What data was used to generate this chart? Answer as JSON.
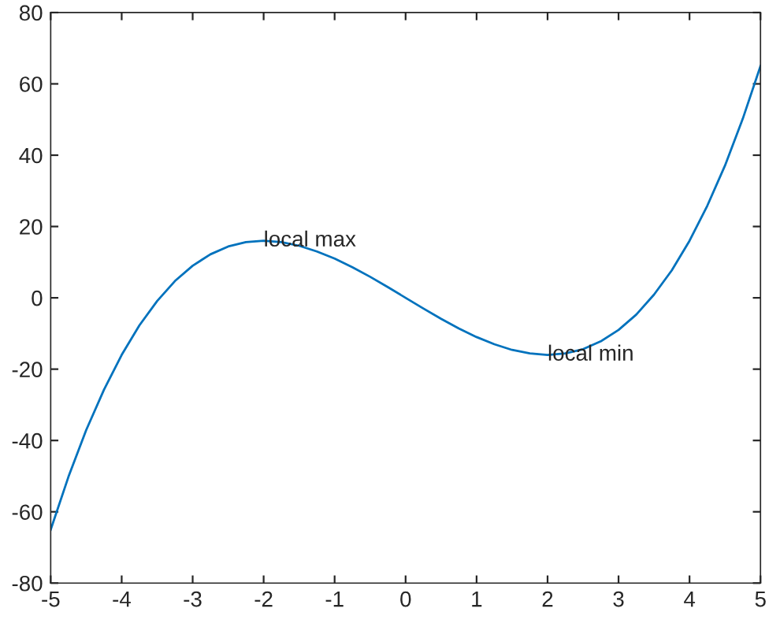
{
  "chart_data": {
    "type": "line",
    "x": [
      -5,
      -4.75,
      -4.5,
      -4.25,
      -4,
      -3.75,
      -3.5,
      -3.25,
      -3,
      -2.75,
      -2.5,
      -2.25,
      -2,
      -1.75,
      -1.5,
      -1.25,
      -1,
      -0.75,
      -0.5,
      -0.25,
      0,
      0.25,
      0.5,
      0.75,
      1,
      1.25,
      1.5,
      1.75,
      2,
      2.25,
      2.5,
      2.75,
      3,
      3.25,
      3.5,
      3.75,
      4,
      4.25,
      4.5,
      4.75,
      5
    ],
    "series": [
      {
        "color": "#0072bd",
        "values": [
          -65,
          -50.2,
          -37.1,
          -25.8,
          -16,
          -7.7,
          -0.9,
          4.7,
          9,
          12.2,
          14.4,
          15.6,
          16,
          15.6,
          14.6,
          13.0,
          11,
          8.6,
          5.9,
          3.0,
          0,
          -3.0,
          -5.9,
          -8.6,
          -11,
          -13.0,
          -14.6,
          -15.6,
          -16,
          -15.6,
          -14.4,
          -12.2,
          -9,
          -4.7,
          0.9,
          7.7,
          16,
          25.8,
          37.1,
          50.2,
          65
        ]
      }
    ],
    "xlim": [
      -5,
      5
    ],
    "xticks": [
      -5,
      -4,
      -3,
      -2,
      -1,
      0,
      1,
      2,
      3,
      4,
      5
    ],
    "ylim": [
      -80,
      80
    ],
    "yticks": [
      -80,
      -60,
      -40,
      -20,
      0,
      20,
      40,
      60,
      80
    ],
    "grid": false,
    "legend": false,
    "marker": "none",
    "line_style": "solid",
    "annotations": [
      {
        "text": "local max",
        "x": -2,
        "y": 16
      },
      {
        "text": "local min",
        "x": 2,
        "y": -16
      }
    ]
  }
}
